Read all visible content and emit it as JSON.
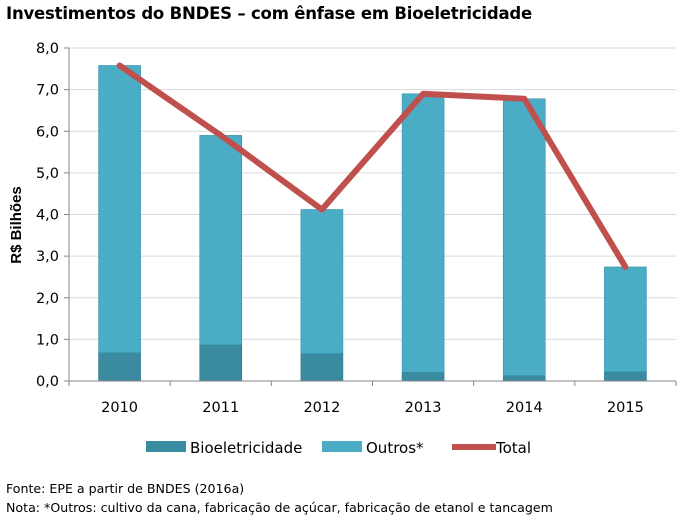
{
  "title": "Investimentos do BNDES – com ênfase em Bioeletricidade",
  "source": "Fonte: EPE a partir de BNDES (2016a)",
  "note": "Nota: *Outros: cultivo da cana, fabricação de açúcar, fabricação de etanol e tancagem",
  "colors": {
    "bioeletricidade": "#3a8aa0",
    "outros": "#4bacc6",
    "total": "#c0504d",
    "axis": "#868686",
    "grid": "#d9d9d9"
  },
  "chart_data": {
    "type": "bar",
    "stacked": true,
    "categories": [
      "2010",
      "2011",
      "2012",
      "2013",
      "2014",
      "2015"
    ],
    "series": [
      {
        "name": "Bioeletricidade",
        "values": [
          0.68,
          0.87,
          0.66,
          0.21,
          0.13,
          0.22
        ]
      },
      {
        "name": "Outros*",
        "values": [
          6.9,
          5.03,
          3.46,
          6.69,
          6.65,
          2.52
        ]
      }
    ],
    "line_series": {
      "name": "Total",
      "values": [
        7.58,
        5.9,
        4.12,
        6.9,
        6.78,
        2.74
      ]
    },
    "ylabel": "R$ Bilhões",
    "xlabel": "",
    "ylim": [
      0,
      8
    ],
    "yticks": [
      "0,0",
      "1,0",
      "2,0",
      "3,0",
      "4,0",
      "5,0",
      "6,0",
      "7,0",
      "8,0"
    ],
    "grid": true,
    "legend": "bottom"
  }
}
